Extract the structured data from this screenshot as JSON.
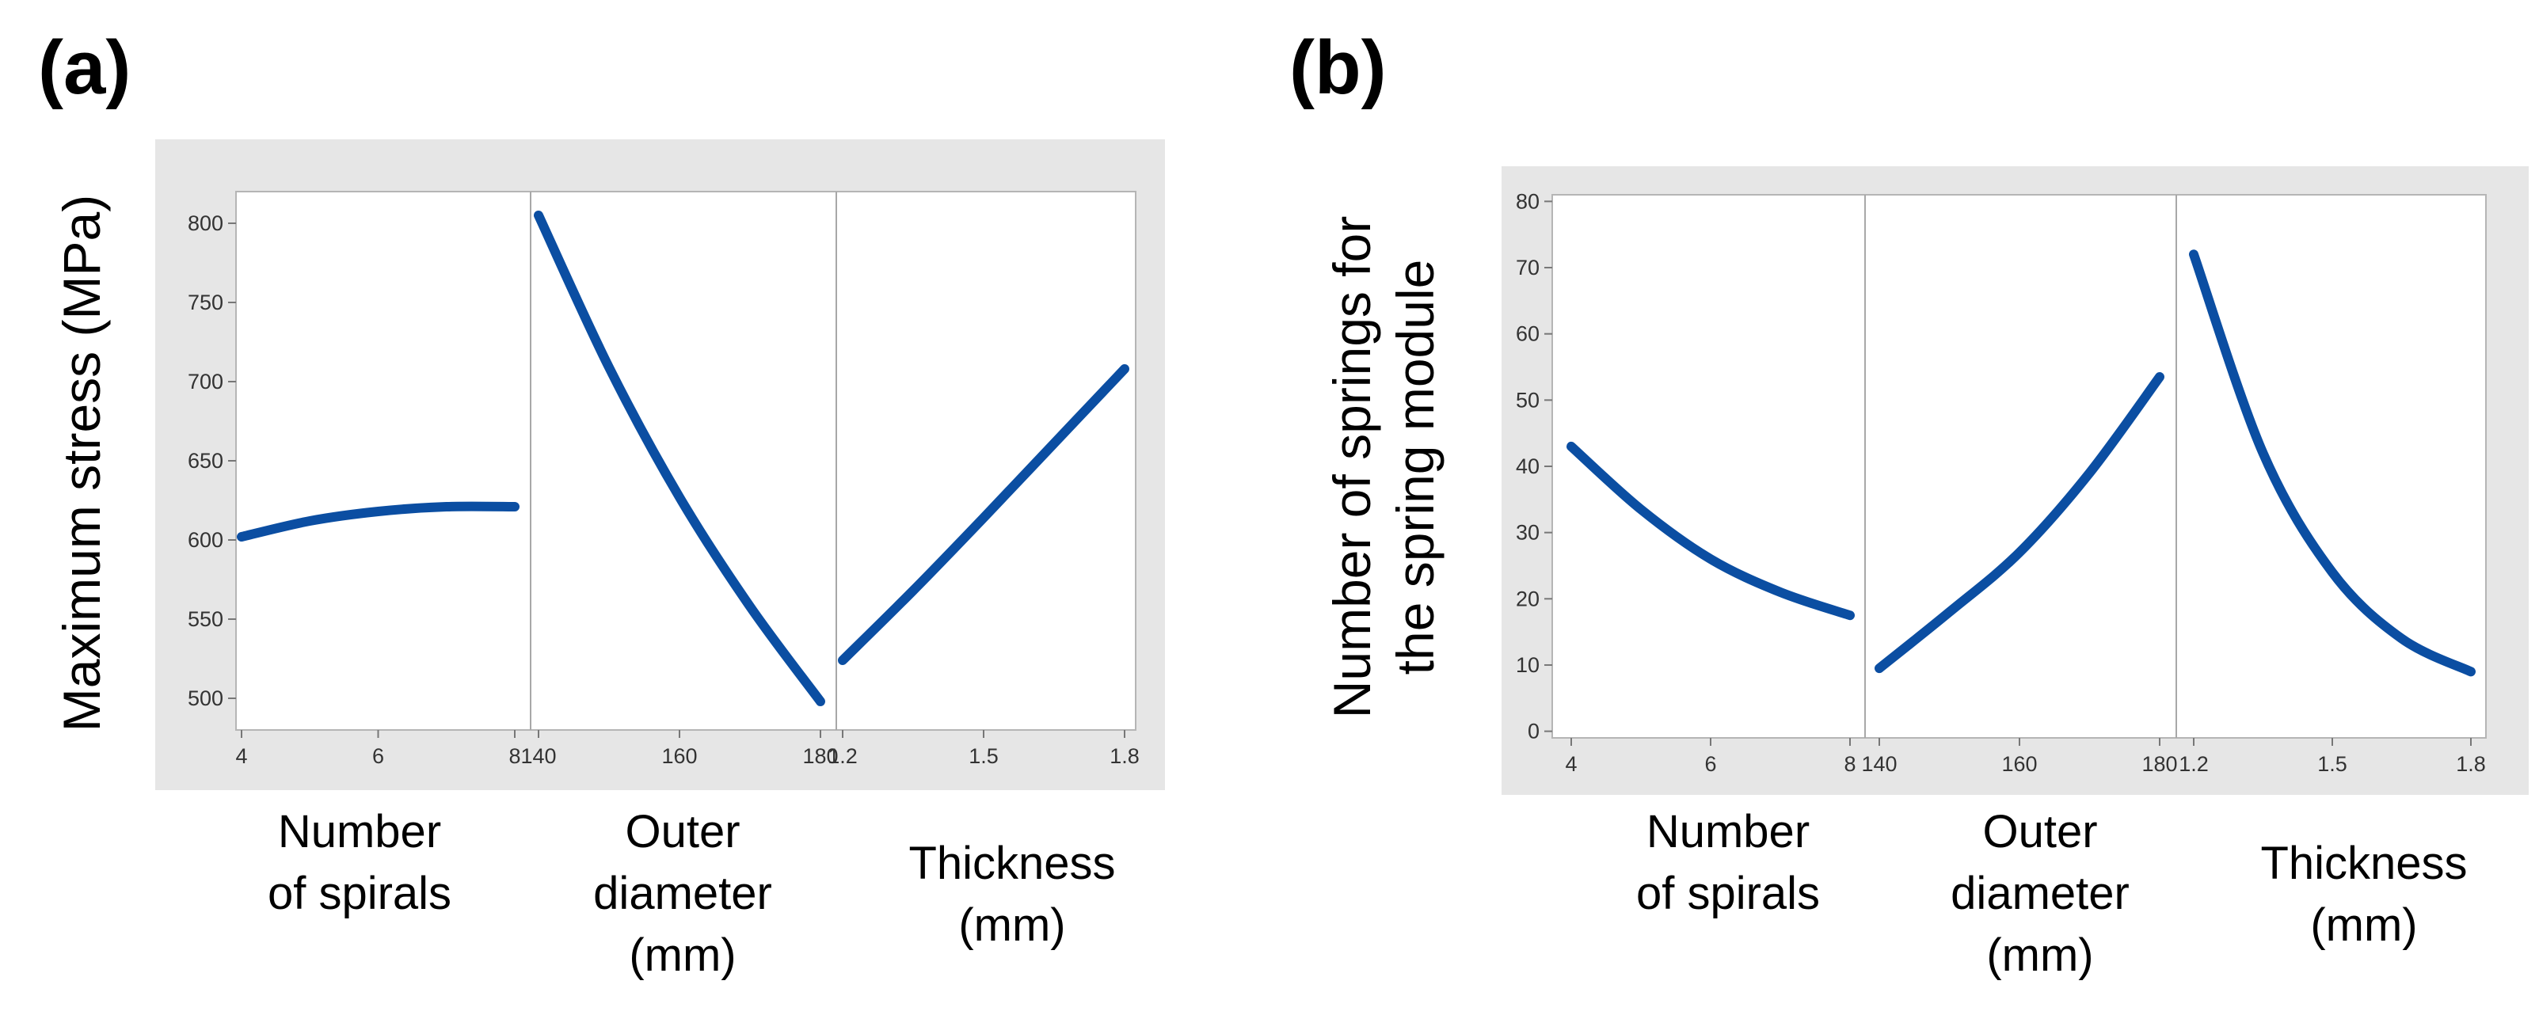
{
  "figure": {
    "panel_a_label": "(a)",
    "panel_b_label": "(b)"
  },
  "chart_data": [
    {
      "type": "line",
      "panel": "(a)",
      "ylabel": "Maximum stress (MPa)",
      "ylim": [
        480,
        820
      ],
      "yticks": [
        500,
        550,
        600,
        650,
        700,
        750,
        800
      ],
      "line_color": "#0b4ea2",
      "subplots": [
        {
          "xlabel_lines": [
            "Number",
            "of spirals"
          ],
          "xlim": [
            4,
            8
          ],
          "xticks": [
            "4",
            "6",
            "8"
          ],
          "xtick_values": [
            4,
            6,
            8
          ],
          "x": [
            4,
            5,
            6,
            7,
            8
          ],
          "y": [
            602,
            612,
            618,
            621,
            621
          ]
        },
        {
          "xlabel_lines": [
            "Outer",
            "diameter",
            "(mm)"
          ],
          "xlim": [
            140,
            180
          ],
          "xticks": [
            "140",
            "160",
            "180"
          ],
          "xtick_values": [
            140,
            160,
            180
          ],
          "x": [
            140,
            150,
            160,
            170,
            180
          ],
          "y": [
            805,
            709,
            627,
            558,
            498
          ]
        },
        {
          "xlabel_lines": [
            "Thickness",
            "(mm)"
          ],
          "xlim": [
            1.2,
            1.8
          ],
          "xticks": [
            "1.2",
            "1.5",
            "1.8"
          ],
          "xtick_values": [
            1.2,
            1.5,
            1.8
          ],
          "x": [
            1.2,
            1.35,
            1.5,
            1.65,
            1.8
          ],
          "y": [
            524,
            568,
            614,
            661,
            708
          ]
        }
      ]
    },
    {
      "type": "line",
      "panel": "(b)",
      "ylabel_lines": [
        "Number of springs for",
        "the spring module"
      ],
      "ylim": [
        -1,
        81
      ],
      "yticks": [
        0,
        10,
        20,
        30,
        40,
        50,
        60,
        70,
        80
      ],
      "line_color": "#0b4ea2",
      "subplots": [
        {
          "xlabel_lines": [
            "Number",
            "of spirals"
          ],
          "xlim": [
            4,
            8
          ],
          "xticks": [
            "4",
            "6",
            "8"
          ],
          "xtick_values": [
            4,
            6,
            8
          ],
          "x": [
            4,
            5,
            6,
            7,
            8
          ],
          "y": [
            43,
            33.5,
            26,
            21,
            17.5
          ]
        },
        {
          "xlabel_lines": [
            "Outer",
            "diameter",
            "(mm)"
          ],
          "xlim": [
            140,
            180
          ],
          "xticks": [
            "140",
            "160",
            "180"
          ],
          "xtick_values": [
            140,
            160,
            180
          ],
          "x": [
            140,
            150,
            160,
            170,
            180
          ],
          "y": [
            9.5,
            18,
            27,
            39,
            53.5
          ]
        },
        {
          "xlabel_lines": [
            "Thickness",
            "(mm)"
          ],
          "xlim": [
            1.2,
            1.8
          ],
          "xticks": [
            "1.2",
            "1.5",
            "1.8"
          ],
          "xtick_values": [
            1.2,
            1.5,
            1.8
          ],
          "x": [
            1.2,
            1.35,
            1.5,
            1.65,
            1.8
          ],
          "y": [
            72,
            42,
            24,
            14,
            9
          ]
        }
      ]
    }
  ]
}
